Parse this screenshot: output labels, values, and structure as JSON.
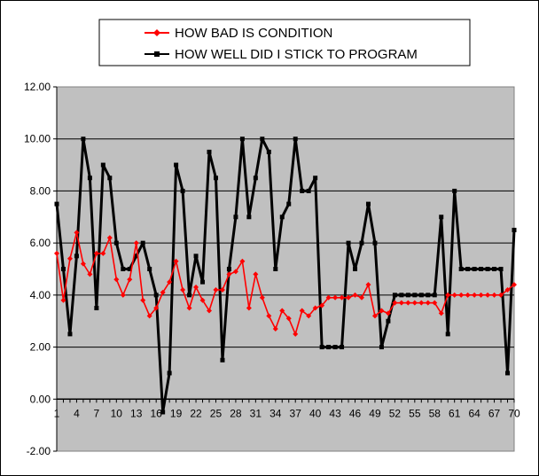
{
  "chart_data": {
    "type": "line",
    "title": "",
    "xlabel": "",
    "ylabel": "",
    "ylim": [
      -2,
      12
    ],
    "yticks": [
      -2,
      0,
      2,
      4,
      6,
      8,
      10,
      12
    ],
    "ytick_labels": [
      "-2.00",
      "0.00",
      "2.00",
      "4.00",
      "6.00",
      "8.00",
      "10.00",
      "12.00"
    ],
    "x": [
      1,
      2,
      3,
      4,
      5,
      6,
      7,
      8,
      9,
      10,
      11,
      12,
      13,
      14,
      15,
      16,
      17,
      18,
      19,
      20,
      21,
      22,
      23,
      24,
      25,
      26,
      27,
      28,
      29,
      30,
      31,
      32,
      33,
      34,
      35,
      36,
      37,
      38,
      39,
      40,
      41,
      42,
      43,
      44,
      45,
      46,
      47,
      48,
      49,
      50,
      51,
      52,
      53,
      54,
      55,
      56,
      57,
      58,
      59,
      60,
      61,
      62,
      63,
      64,
      65,
      66,
      67,
      68,
      69,
      70
    ],
    "xticks": [
      1,
      4,
      7,
      10,
      13,
      16,
      19,
      22,
      25,
      28,
      31,
      34,
      37,
      40,
      43,
      46,
      49,
      52,
      55,
      58,
      61,
      64,
      67,
      70
    ],
    "plot_background": "#c0c0c0",
    "grid": true,
    "legend_position": "top",
    "series": [
      {
        "name": "HOW BAD IS CONDITION",
        "color": "#ff0000",
        "marker": "diamond",
        "values": [
          5.6,
          3.8,
          5.4,
          6.4,
          5.2,
          4.8,
          5.6,
          5.6,
          6.2,
          4.6,
          4.0,
          4.6,
          6.0,
          3.8,
          3.2,
          3.5,
          4.1,
          4.5,
          5.3,
          4.2,
          3.5,
          4.3,
          3.8,
          3.4,
          4.2,
          4.2,
          4.8,
          4.9,
          5.3,
          3.5,
          4.8,
          3.9,
          3.2,
          2.7,
          3.4,
          3.1,
          2.5,
          3.4,
          3.2,
          3.5,
          3.6,
          3.9,
          3.9,
          3.9,
          3.9,
          4.0,
          3.9,
          4.4,
          3.2,
          3.4,
          3.3,
          3.7,
          3.7,
          3.7,
          3.7,
          3.7,
          3.7,
          3.7,
          3.3,
          4.0,
          4.0,
          4.0,
          4.0,
          4.0,
          4.0,
          4.0,
          4.0,
          4.0,
          4.2,
          4.4
        ]
      },
      {
        "name": "HOW WELL DID I STICK TO PROGRAM",
        "color": "#000000",
        "marker": "square",
        "values": [
          7.5,
          5.0,
          2.5,
          5.5,
          10.0,
          8.5,
          3.5,
          9.0,
          8.5,
          6.0,
          5.0,
          5.0,
          5.5,
          6.0,
          5.0,
          4.0,
          -0.5,
          1.0,
          9.0,
          8.0,
          4.0,
          5.5,
          4.5,
          9.5,
          8.5,
          1.5,
          5.0,
          7.0,
          10.0,
          7.0,
          8.5,
          10.0,
          9.5,
          5.0,
          7.0,
          7.5,
          10.0,
          8.0,
          8.0,
          8.5,
          2.0,
          2.0,
          2.0,
          2.0,
          6.0,
          5.0,
          6.0,
          7.5,
          6.0,
          2.0,
          3.0,
          4.0,
          4.0,
          4.0,
          4.0,
          4.0,
          4.0,
          4.0,
          7.0,
          2.5,
          8.0,
          5.0,
          5.0,
          5.0,
          5.0,
          5.0,
          5.0,
          5.0,
          1.0,
          6.5
        ]
      }
    ]
  }
}
